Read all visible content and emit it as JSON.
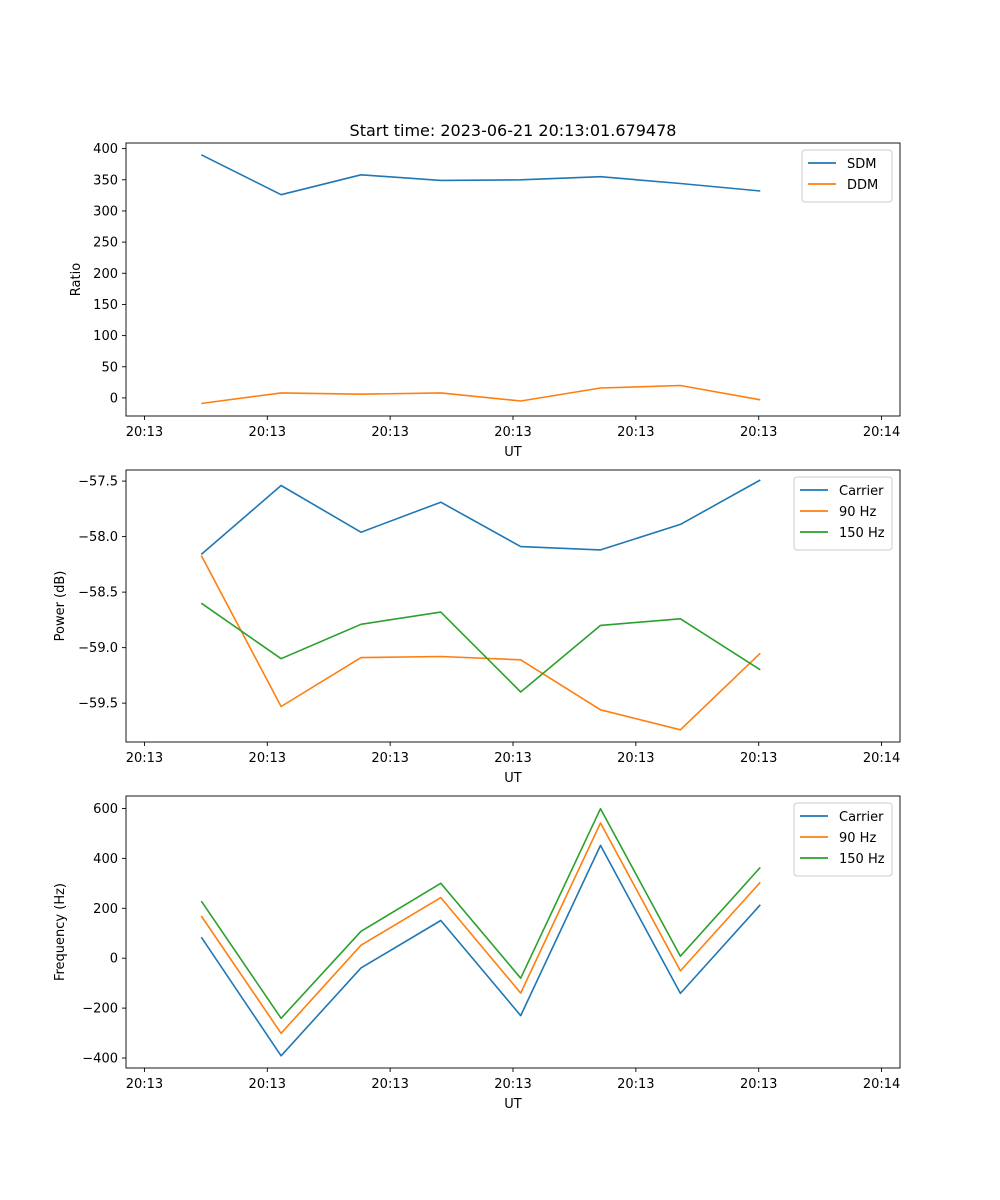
{
  "figure_title": "Start time: 2023-06-21 20:13:01.679478",
  "colors": {
    "blue": "#1f77b4",
    "orange": "#ff7f0e",
    "green": "#2ca02c"
  },
  "chart_data": [
    {
      "type": "line",
      "title": "Start time: 2023-06-21 20:13:01.679478",
      "xlabel": "UT",
      "ylabel": "Ratio",
      "xlim": [
        -0.42,
        4.62
      ],
      "ylim": [
        -29,
        409
      ],
      "xticks": [
        -0.3,
        0.5,
        1.3,
        2.1,
        2.9,
        3.7,
        4.5
      ],
      "xtick_labels": [
        "20:13",
        "20:13",
        "20:13",
        "20:13",
        "20:13",
        "20:13",
        "20:14"
      ],
      "yticks": [
        0,
        50,
        100,
        150,
        200,
        250,
        300,
        350,
        400
      ],
      "ytick_labels": [
        "0",
        "50",
        "100",
        "150",
        "200",
        "250",
        "300",
        "350",
        "400"
      ],
      "legend_position": "top-right",
      "x": [
        0.07,
        0.59,
        1.11,
        1.63,
        2.15,
        2.67,
        3.19,
        3.71
      ],
      "series": [
        {
          "name": "SDM",
          "color": "#1f77b4",
          "values": [
            390,
            326,
            358,
            349,
            350,
            355,
            344,
            332
          ]
        },
        {
          "name": "DDM",
          "color": "#ff7f0e",
          "values": [
            -9,
            8,
            6,
            8,
            -5,
            16,
            20,
            -3
          ]
        }
      ]
    },
    {
      "type": "line",
      "xlabel": "UT",
      "ylabel": "Power (dB)",
      "xlim": [
        -0.42,
        4.62
      ],
      "ylim": [
        -59.85,
        -57.4
      ],
      "xticks": [
        -0.3,
        0.5,
        1.3,
        2.1,
        2.9,
        3.7,
        4.5
      ],
      "xtick_labels": [
        "20:13",
        "20:13",
        "20:13",
        "20:13",
        "20:13",
        "20:13",
        "20:14"
      ],
      "yticks": [
        -59.5,
        -59.0,
        -58.5,
        -58.0,
        -57.5
      ],
      "ytick_labels": [
        "−59.5",
        "−59.0",
        "−58.5",
        "−58.0",
        "−57.5"
      ],
      "legend_position": "top-right",
      "x": [
        0.07,
        0.59,
        1.11,
        1.63,
        2.15,
        2.67,
        3.19,
        3.71
      ],
      "series": [
        {
          "name": "Carrier",
          "color": "#1f77b4",
          "values": [
            -58.16,
            -57.54,
            -57.96,
            -57.69,
            -58.09,
            -58.12,
            -57.89,
            -57.49
          ]
        },
        {
          "name": "90 Hz",
          "color": "#ff7f0e",
          "values": [
            -58.17,
            -59.53,
            -59.09,
            -59.08,
            -59.11,
            -59.56,
            -59.74,
            -59.05
          ]
        },
        {
          "name": "150 Hz",
          "color": "#2ca02c",
          "values": [
            -58.6,
            -59.1,
            -58.79,
            -58.68,
            -59.4,
            -58.8,
            -58.74,
            -59.2
          ]
        }
      ]
    },
    {
      "type": "line",
      "xlabel": "UT",
      "ylabel": "Frequency (Hz)",
      "xlim": [
        -0.42,
        4.62
      ],
      "ylim": [
        -440,
        650
      ],
      "xticks": [
        -0.3,
        0.5,
        1.3,
        2.1,
        2.9,
        3.7,
        4.5
      ],
      "xtick_labels": [
        "20:13",
        "20:13",
        "20:13",
        "20:13",
        "20:13",
        "20:13",
        "20:14"
      ],
      "yticks": [
        -400,
        -200,
        0,
        200,
        400,
        600
      ],
      "ytick_labels": [
        "−400",
        "−200",
        "0",
        "200",
        "400",
        "600"
      ],
      "legend_position": "top-right",
      "x": [
        0.07,
        0.59,
        1.11,
        1.63,
        2.15,
        2.67,
        3.19,
        3.71
      ],
      "series": [
        {
          "name": "Carrier",
          "color": "#1f77b4",
          "values": [
            84,
            -391,
            -39,
            151,
            -230,
            452,
            -141,
            214
          ]
        },
        {
          "name": "90 Hz",
          "color": "#ff7f0e",
          "values": [
            169,
            -301,
            52,
            243,
            -140,
            542,
            -51,
            304
          ]
        },
        {
          "name": "150 Hz",
          "color": "#2ca02c",
          "values": [
            229,
            -241,
            108,
            300,
            -80,
            599,
            8,
            364
          ]
        }
      ]
    }
  ]
}
